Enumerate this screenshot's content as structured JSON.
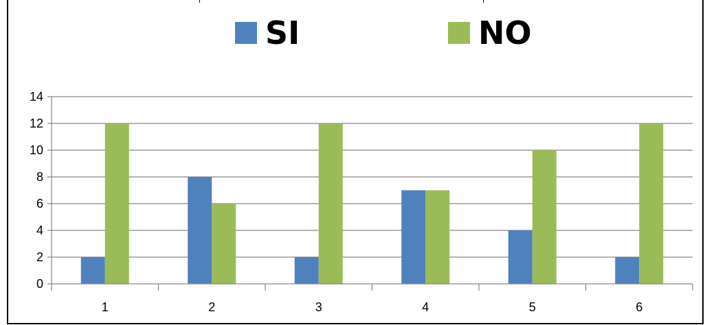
{
  "chart_data": {
    "type": "bar",
    "categories": [
      "1",
      "2",
      "3",
      "4",
      "5",
      "6"
    ],
    "series": [
      {
        "name": "SI",
        "color": "#4f81bd",
        "values": [
          2,
          8,
          2,
          7,
          4,
          2
        ]
      },
      {
        "name": "NO",
        "color": "#9bbb59",
        "values": [
          12,
          6,
          12,
          7,
          10,
          12
        ]
      }
    ],
    "ylim": [
      0,
      14
    ],
    "yticks": [
      "0",
      "2",
      "4",
      "6",
      "8",
      "10",
      "12",
      "14"
    ],
    "grid": true,
    "legend_position": "top"
  }
}
